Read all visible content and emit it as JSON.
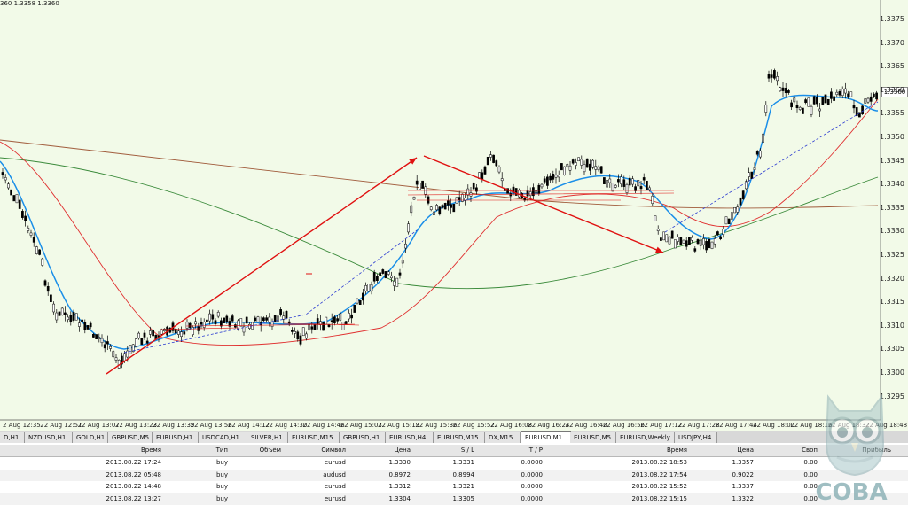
{
  "top_info": "360 1.3358 1.3360",
  "current_price": "1.3360",
  "price_axis": [
    "1.3375",
    "1.3370",
    "1.3365",
    "1.3360",
    "1.3355",
    "1.3350",
    "1.3345",
    "1.3340",
    "1.3335",
    "1.3330",
    "1.3325",
    "1.3320",
    "1.3315",
    "1.3310",
    "1.3305",
    "1.3300",
    "1.3295"
  ],
  "time_axis": [
    "2 Aug 12:35",
    "22 Aug 12:51",
    "22 Aug 13:07",
    "22 Aug 13:23",
    "22 Aug 13:39",
    "22 Aug 13:56",
    "22 Aug 14:12",
    "22 Aug 14:30",
    "22 Aug 14:46",
    "22 Aug 15:03",
    "22 Aug 15:19",
    "22 Aug 15:36",
    "22 Aug 15:52",
    "22 Aug 16:08",
    "22 Aug 16:24",
    "22 Aug 16:40",
    "22 Aug 16:56",
    "22 Aug 17:12",
    "22 Aug 17:28",
    "22 Aug 17:44",
    "22 Aug 18:00",
    "22 Aug 18:16",
    "22 Aug 18:32",
    "22 Aug 18:48"
  ],
  "tabs": [
    "D,H1",
    "NZDUSD,H1",
    "GOLD,H1",
    "GBPUSD,M5",
    "EURUSD,H1",
    "USDCAD,H1",
    "SILVER,H1",
    "EURUSD,M15",
    "GBPUSD,H1",
    "EURUSD,H4",
    "EURUSD,M15",
    "DX,M15",
    "EURUSD,M1",
    "EURUSD,M5",
    "EURUSD,Weekly",
    "USDJPY,H4"
  ],
  "active_tab_index": 12,
  "table": {
    "headers": {
      "open_time": "Время",
      "type": "Тип",
      "volume": "Объём",
      "symbol": "Символ",
      "price": "Цена",
      "sl": "S / L",
      "tp": "T / P",
      "close_time": "Время",
      "close_price": "Цена",
      "swap": "Своп",
      "profit": "Прибыль"
    },
    "rows": [
      {
        "open_time": "2013.08.22 17:24",
        "type": "buy",
        "symbol": "eurusd",
        "price": "1.3330",
        "sl": "1.3331",
        "tp": "0.0000",
        "close_time": "2013.08.22 18:53",
        "close_price": "1.3357",
        "swap": "0.00"
      },
      {
        "open_time": "2013.08.22 05:48",
        "type": "buy",
        "symbol": "audusd",
        "price": "0.8972",
        "sl": "0.8994",
        "tp": "0.0000",
        "close_time": "2013.08.22 17:54",
        "close_price": "0.9022",
        "swap": "0.00"
      },
      {
        "open_time": "2013.08.22 14:48",
        "type": "buy",
        "symbol": "eurusd",
        "price": "1.3312",
        "sl": "1.3321",
        "tp": "0.0000",
        "close_time": "2013.08.22 15:52",
        "close_price": "1.3337",
        "swap": "0.00"
      },
      {
        "open_time": "2013.08.22 13:27",
        "type": "buy",
        "symbol": "eurusd",
        "price": "1.3304",
        "sl": "1.3305",
        "tp": "0.0000",
        "close_time": "2013.08.22 15:15",
        "close_price": "1.3322",
        "swap": "0.00"
      }
    ]
  },
  "watermark": "СОВА",
  "colors": {
    "background": "#f2fae8",
    "candle": "#000000",
    "ma_fast": "#1a8ee8",
    "ma_red": "#e03030",
    "ma_green": "#3a8a3a",
    "ma_brown": "#a05a3a",
    "arrow": "#e01010",
    "trend": "#2a3ad0"
  }
}
